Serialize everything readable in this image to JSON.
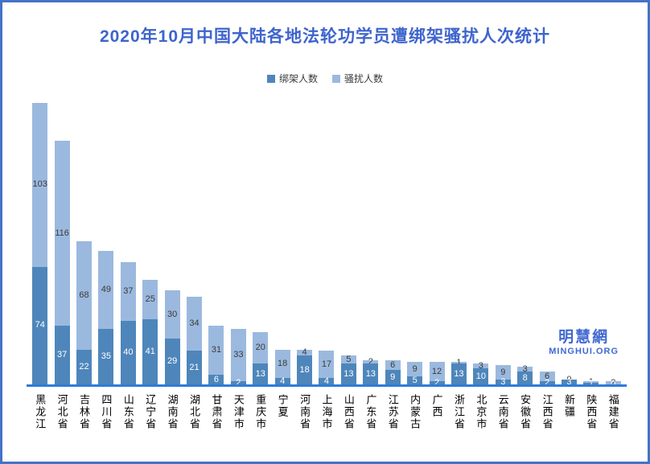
{
  "title": "2020年10月中国大陆各地法轮功学员遭绑架骚扰人次统计",
  "watermark": {
    "cn": "明慧網",
    "en": "MINGHUI.ORG"
  },
  "colors": {
    "title": "#3E64CD",
    "frame_border": "#4472C4",
    "axis_line": "#2E7BD9",
    "kidnap_bar": "#4E86BB",
    "harass_bar": "#9BB9DE",
    "watermark": "#4169D1"
  },
  "chart_data": {
    "type": "bar",
    "stacked": true,
    "title": "2020年10月中国大陆各地法轮功学员遭绑架骚扰人次统计",
    "legend_position": "top",
    "grid": false,
    "ylim": [
      0,
      180
    ],
    "categories": [
      "黑龙江",
      "河北省",
      "吉林省",
      "四川省",
      "山东省",
      "辽宁省",
      "湖南省",
      "湖北省",
      "甘肃省",
      "天津市",
      "重庆市",
      "宁夏",
      "河南省",
      "上海市",
      "山西省",
      "广东省",
      "江苏省",
      "内蒙古",
      "广西",
      "浙江省",
      "北京市",
      "云南省",
      "安徽省",
      "江西省",
      "新疆",
      "陕西省",
      "福建省"
    ],
    "series": [
      {
        "name": "绑架人数",
        "color": "#4E86BB",
        "values": [
          74,
          37,
          22,
          35,
          40,
          41,
          29,
          21,
          6,
          2,
          13,
          4,
          18,
          4,
          13,
          13,
          9,
          5,
          2,
          13,
          10,
          3,
          8,
          2,
          3,
          1,
          0
        ]
      },
      {
        "name": "骚扰人数",
        "color": "#9BB9DE",
        "values": [
          103,
          116,
          68,
          49,
          37,
          25,
          30,
          34,
          31,
          33,
          20,
          18,
          4,
          17,
          5,
          2,
          6,
          9,
          12,
          1,
          3,
          9,
          3,
          6,
          0,
          1,
          2
        ]
      }
    ]
  }
}
